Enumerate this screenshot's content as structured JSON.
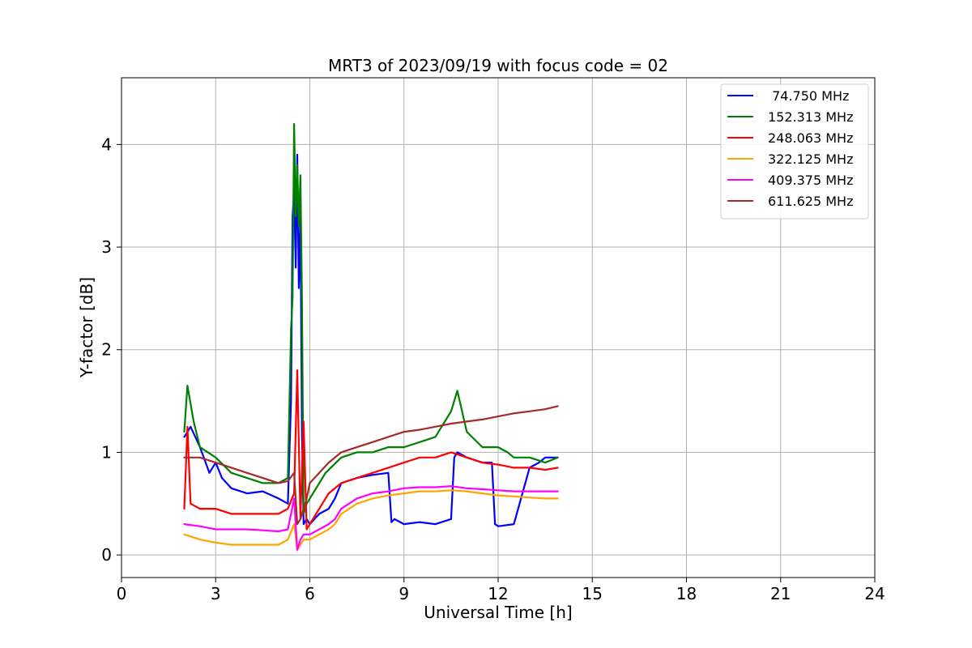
{
  "chart_data": {
    "type": "line",
    "title": "MRT3 of 2023/09/19 with focus code = 02",
    "xlabel": "Universal Time [h]",
    "ylabel": "Y-factor [dB]",
    "xlim": [
      0,
      24
    ],
    "ylim": [
      -0.22,
      4.65
    ],
    "xticks": [
      0,
      3,
      6,
      9,
      12,
      15,
      18,
      21,
      24
    ],
    "yticks": [
      0,
      1,
      2,
      3,
      4
    ],
    "grid": true,
    "legend_position": "top-right",
    "series": [
      {
        "name": " 74.750 MHz",
        "color": "#0000ff",
        "x": [
          2.0,
          2.2,
          2.5,
          2.8,
          3.0,
          3.2,
          3.5,
          4.0,
          4.5,
          5.0,
          5.3,
          5.4,
          5.45,
          5.5,
          5.55,
          5.6,
          5.65,
          5.7,
          5.75,
          5.8,
          5.9,
          6.0,
          6.3,
          6.6,
          6.8,
          7.0,
          7.5,
          8.0,
          8.5,
          8.6,
          8.7,
          9.0,
          9.5,
          10.0,
          10.5,
          10.6,
          10.7,
          11.0,
          11.5,
          11.8,
          11.9,
          12.0,
          12.5,
          13.0,
          13.3,
          13.5,
          13.9
        ],
        "y": [
          1.15,
          1.25,
          1.05,
          0.8,
          0.9,
          0.75,
          0.65,
          0.6,
          0.62,
          0.55,
          0.5,
          1.5,
          3.3,
          3.55,
          2.8,
          3.9,
          2.6,
          3.3,
          1.2,
          0.3,
          0.35,
          0.3,
          0.4,
          0.45,
          0.55,
          0.7,
          0.75,
          0.78,
          0.8,
          0.32,
          0.35,
          0.3,
          0.32,
          0.3,
          0.35,
          0.95,
          1.0,
          0.95,
          0.9,
          0.9,
          0.3,
          0.28,
          0.3,
          0.85,
          0.9,
          0.95,
          0.95
        ]
      },
      {
        "name": "152.313 MHz",
        "color": "#008000",
        "x": [
          2.0,
          2.1,
          2.3,
          2.5,
          3.0,
          3.5,
          4.0,
          4.5,
          5.0,
          5.3,
          5.4,
          5.45,
          5.5,
          5.55,
          5.6,
          5.65,
          5.7,
          5.75,
          5.8,
          5.9,
          6.0,
          6.2,
          6.5,
          7.0,
          7.5,
          8.0,
          8.5,
          9.0,
          9.5,
          10.0,
          10.5,
          10.7,
          11.0,
          11.5,
          12.0,
          12.3,
          12.5,
          13.0,
          13.5,
          13.9
        ],
        "y": [
          1.2,
          1.65,
          1.3,
          1.05,
          0.95,
          0.8,
          0.75,
          0.7,
          0.7,
          0.75,
          2.2,
          2.5,
          4.2,
          3.3,
          3.8,
          3.2,
          3.7,
          2.5,
          0.4,
          0.5,
          0.55,
          0.65,
          0.8,
          0.95,
          1.0,
          1.0,
          1.05,
          1.05,
          1.1,
          1.15,
          1.4,
          1.6,
          1.2,
          1.05,
          1.05,
          1.0,
          0.95,
          0.95,
          0.9,
          0.95
        ]
      },
      {
        "name": "248.063 MHz",
        "color": "#ff0000",
        "x": [
          2.0,
          2.1,
          2.2,
          2.5,
          3.0,
          3.5,
          4.0,
          4.5,
          5.0,
          5.3,
          5.5,
          5.6,
          5.7,
          5.8,
          5.9,
          6.0,
          6.3,
          6.6,
          7.0,
          7.5,
          8.0,
          8.5,
          9.0,
          9.5,
          10.0,
          10.5,
          11.0,
          11.5,
          12.0,
          12.5,
          13.0,
          13.5,
          13.9
        ],
        "y": [
          0.45,
          1.25,
          0.5,
          0.45,
          0.45,
          0.4,
          0.4,
          0.4,
          0.4,
          0.45,
          0.6,
          1.8,
          0.35,
          1.3,
          0.25,
          0.3,
          0.45,
          0.6,
          0.7,
          0.75,
          0.8,
          0.85,
          0.9,
          0.95,
          0.95,
          1.0,
          0.95,
          0.9,
          0.88,
          0.85,
          0.85,
          0.83,
          0.85
        ]
      },
      {
        "name": "322.125 MHz",
        "color": "#ffa500",
        "x": [
          2.0,
          2.5,
          3.0,
          3.5,
          4.0,
          4.5,
          5.0,
          5.3,
          5.5,
          5.6,
          5.7,
          5.8,
          6.0,
          6.3,
          6.6,
          6.8,
          7.0,
          7.5,
          8.0,
          8.5,
          9.0,
          9.5,
          10.0,
          10.5,
          11.0,
          11.5,
          12.0,
          12.5,
          13.0,
          13.5,
          13.9
        ],
        "y": [
          0.2,
          0.15,
          0.12,
          0.1,
          0.1,
          0.1,
          0.1,
          0.15,
          0.3,
          0.05,
          0.1,
          0.15,
          0.15,
          0.2,
          0.25,
          0.3,
          0.4,
          0.5,
          0.55,
          0.58,
          0.6,
          0.62,
          0.62,
          0.63,
          0.62,
          0.6,
          0.58,
          0.57,
          0.56,
          0.55,
          0.55
        ]
      },
      {
        "name": "409.375 MHz",
        "color": "#ff00ff",
        "x": [
          2.0,
          2.5,
          3.0,
          3.5,
          4.0,
          4.5,
          5.0,
          5.3,
          5.5,
          5.6,
          5.7,
          5.8,
          6.0,
          6.3,
          6.6,
          6.8,
          7.0,
          7.5,
          8.0,
          8.5,
          9.0,
          9.5,
          10.0,
          10.5,
          11.0,
          11.5,
          12.0,
          12.5,
          13.0,
          13.5,
          13.9
        ],
        "y": [
          0.3,
          0.28,
          0.25,
          0.25,
          0.25,
          0.24,
          0.23,
          0.25,
          0.55,
          0.05,
          0.15,
          0.2,
          0.2,
          0.25,
          0.3,
          0.35,
          0.45,
          0.55,
          0.6,
          0.62,
          0.65,
          0.66,
          0.66,
          0.67,
          0.65,
          0.64,
          0.63,
          0.62,
          0.62,
          0.62,
          0.62
        ]
      },
      {
        "name": "611.625 MHz",
        "color": "#a52a2a",
        "x": [
          2.0,
          2.5,
          3.0,
          3.5,
          4.0,
          4.5,
          5.0,
          5.3,
          5.5,
          5.6,
          5.7,
          5.8,
          5.9,
          6.0,
          6.3,
          6.6,
          7.0,
          7.5,
          8.0,
          8.5,
          9.0,
          9.5,
          10.0,
          10.5,
          11.0,
          11.5,
          12.0,
          12.5,
          13.0,
          13.5,
          13.9
        ],
        "y": [
          0.95,
          0.95,
          0.9,
          0.85,
          0.8,
          0.75,
          0.7,
          0.72,
          0.8,
          0.3,
          0.35,
          0.45,
          0.55,
          0.7,
          0.8,
          0.9,
          1.0,
          1.05,
          1.1,
          1.15,
          1.2,
          1.22,
          1.25,
          1.28,
          1.3,
          1.32,
          1.35,
          1.38,
          1.4,
          1.42,
          1.45
        ]
      }
    ]
  }
}
